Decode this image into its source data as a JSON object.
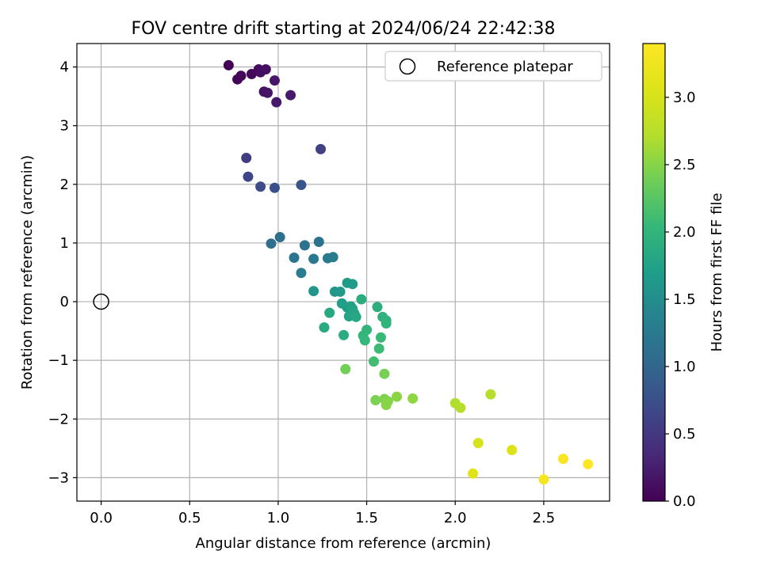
{
  "chart_data": {
    "type": "scatter",
    "title": "FOV centre drift starting at 2024/06/24 22:42:38",
    "xlabel": "Angular distance from reference (arcmin)",
    "ylabel": "Rotation from reference (arcmin)",
    "xlim": [
      -0.137,
      2.872
    ],
    "ylim": [
      -3.4,
      4.4
    ],
    "xticks": [
      0.0,
      0.5,
      1.0,
      1.5,
      2.0,
      2.5
    ],
    "xtick_labels": [
      "0.0",
      "0.5",
      "1.0",
      "1.5",
      "2.0",
      "2.5"
    ],
    "yticks": [
      -3,
      -2,
      -1,
      0,
      1,
      2,
      3,
      4
    ],
    "ytick_labels": [
      "−3",
      "−2",
      "−1",
      "0",
      "1",
      "2",
      "3",
      "4"
    ],
    "grid": true,
    "legend": {
      "position": "upper-right",
      "entries": [
        "Reference platepar"
      ]
    },
    "reference_point": {
      "name": "Reference platepar",
      "x": 0.0,
      "y": 0.0
    },
    "colorbar": {
      "label": "Hours from first FF file",
      "colormap": "viridis",
      "range": [
        0.0,
        3.4
      ],
      "ticks": [
        0.0,
        0.5,
        1.0,
        1.5,
        2.0,
        2.5,
        3.0
      ],
      "tick_labels": [
        "0.0",
        "0.5",
        "1.0",
        "1.5",
        "2.0",
        "2.5",
        "3.0"
      ]
    },
    "points": [
      {
        "x": 0.72,
        "y": 4.03,
        "t": 0.0
      },
      {
        "x": 0.77,
        "y": 3.79,
        "t": 0.03
      },
      {
        "x": 0.79,
        "y": 3.85,
        "t": 0.05
      },
      {
        "x": 0.85,
        "y": 3.88,
        "t": 0.07
      },
      {
        "x": 0.89,
        "y": 3.96,
        "t": 0.09
      },
      {
        "x": 0.9,
        "y": 3.91,
        "t": 0.11
      },
      {
        "x": 0.93,
        "y": 3.96,
        "t": 0.13
      },
      {
        "x": 0.92,
        "y": 3.58,
        "t": 0.15
      },
      {
        "x": 0.94,
        "y": 3.56,
        "t": 0.17
      },
      {
        "x": 0.98,
        "y": 3.77,
        "t": 0.19
      },
      {
        "x": 0.99,
        "y": 3.4,
        "t": 0.21
      },
      {
        "x": 1.07,
        "y": 3.52,
        "t": 0.23
      },
      {
        "x": 0.82,
        "y": 2.45,
        "t": 0.55
      },
      {
        "x": 1.24,
        "y": 2.6,
        "t": 0.6
      },
      {
        "x": 0.83,
        "y": 2.13,
        "t": 0.65
      },
      {
        "x": 0.9,
        "y": 1.96,
        "t": 0.7
      },
      {
        "x": 0.98,
        "y": 1.94,
        "t": 0.75
      },
      {
        "x": 1.13,
        "y": 1.99,
        "t": 0.8
      },
      {
        "x": 1.01,
        "y": 1.1,
        "t": 1.1
      },
      {
        "x": 0.96,
        "y": 0.99,
        "t": 1.12
      },
      {
        "x": 1.15,
        "y": 0.96,
        "t": 1.15
      },
      {
        "x": 1.23,
        "y": 1.02,
        "t": 1.18
      },
      {
        "x": 1.09,
        "y": 0.75,
        "t": 1.2
      },
      {
        "x": 1.2,
        "y": 0.73,
        "t": 1.22
      },
      {
        "x": 1.28,
        "y": 0.74,
        "t": 1.25
      },
      {
        "x": 1.31,
        "y": 0.76,
        "t": 1.27
      },
      {
        "x": 1.13,
        "y": 0.49,
        "t": 1.3
      },
      {
        "x": 1.2,
        "y": 0.18,
        "t": 1.6
      },
      {
        "x": 1.32,
        "y": 0.17,
        "t": 1.62
      },
      {
        "x": 1.35,
        "y": 0.17,
        "t": 1.64
      },
      {
        "x": 1.39,
        "y": 0.32,
        "t": 1.66
      },
      {
        "x": 1.42,
        "y": 0.3,
        "t": 1.68
      },
      {
        "x": 1.36,
        "y": -0.03,
        "t": 1.7
      },
      {
        "x": 1.39,
        "y": -0.1,
        "t": 1.72
      },
      {
        "x": 1.41,
        "y": -0.08,
        "t": 1.74
      },
      {
        "x": 1.42,
        "y": -0.12,
        "t": 1.76
      },
      {
        "x": 1.4,
        "y": -0.25,
        "t": 1.78
      },
      {
        "x": 1.43,
        "y": -0.2,
        "t": 1.8
      },
      {
        "x": 1.44,
        "y": -0.26,
        "t": 1.82
      },
      {
        "x": 1.29,
        "y": -0.19,
        "t": 1.84
      },
      {
        "x": 1.26,
        "y": -0.44,
        "t": 1.86
      },
      {
        "x": 1.37,
        "y": -0.57,
        "t": 1.88
      },
      {
        "x": 1.47,
        "y": 0.04,
        "t": 1.9
      },
      {
        "x": 1.56,
        "y": -0.09,
        "t": 1.92
      },
      {
        "x": 1.59,
        "y": -0.26,
        "t": 1.94
      },
      {
        "x": 1.61,
        "y": -0.32,
        "t": 1.96
      },
      {
        "x": 1.61,
        "y": -0.37,
        "t": 1.98
      },
      {
        "x": 1.5,
        "y": -0.48,
        "t": 2.0
      },
      {
        "x": 1.48,
        "y": -0.58,
        "t": 2.02
      },
      {
        "x": 1.49,
        "y": -0.66,
        "t": 2.04
      },
      {
        "x": 1.58,
        "y": -0.61,
        "t": 2.06
      },
      {
        "x": 1.57,
        "y": -0.8,
        "t": 2.08
      },
      {
        "x": 1.54,
        "y": -1.02,
        "t": 2.12
      },
      {
        "x": 1.38,
        "y": -1.15,
        "t": 2.4
      },
      {
        "x": 1.6,
        "y": -1.23,
        "t": 2.42
      },
      {
        "x": 1.55,
        "y": -1.68,
        "t": 2.44
      },
      {
        "x": 1.6,
        "y": -1.66,
        "t": 2.46
      },
      {
        "x": 1.62,
        "y": -1.7,
        "t": 2.48
      },
      {
        "x": 1.61,
        "y": -1.76,
        "t": 2.5
      },
      {
        "x": 1.67,
        "y": -1.62,
        "t": 2.52
      },
      {
        "x": 1.76,
        "y": -1.65,
        "t": 2.54
      },
      {
        "x": 2.0,
        "y": -1.73,
        "t": 2.7
      },
      {
        "x": 2.03,
        "y": -1.81,
        "t": 2.72
      },
      {
        "x": 2.2,
        "y": -1.58,
        "t": 2.74
      },
      {
        "x": 2.13,
        "y": -2.41,
        "t": 3.0
      },
      {
        "x": 2.32,
        "y": -2.53,
        "t": 3.05
      },
      {
        "x": 2.1,
        "y": -2.93,
        "t": 3.1
      },
      {
        "x": 2.5,
        "y": -3.03,
        "t": 3.3
      },
      {
        "x": 2.61,
        "y": -2.68,
        "t": 3.35
      },
      {
        "x": 2.75,
        "y": -2.77,
        "t": 3.4
      }
    ]
  }
}
